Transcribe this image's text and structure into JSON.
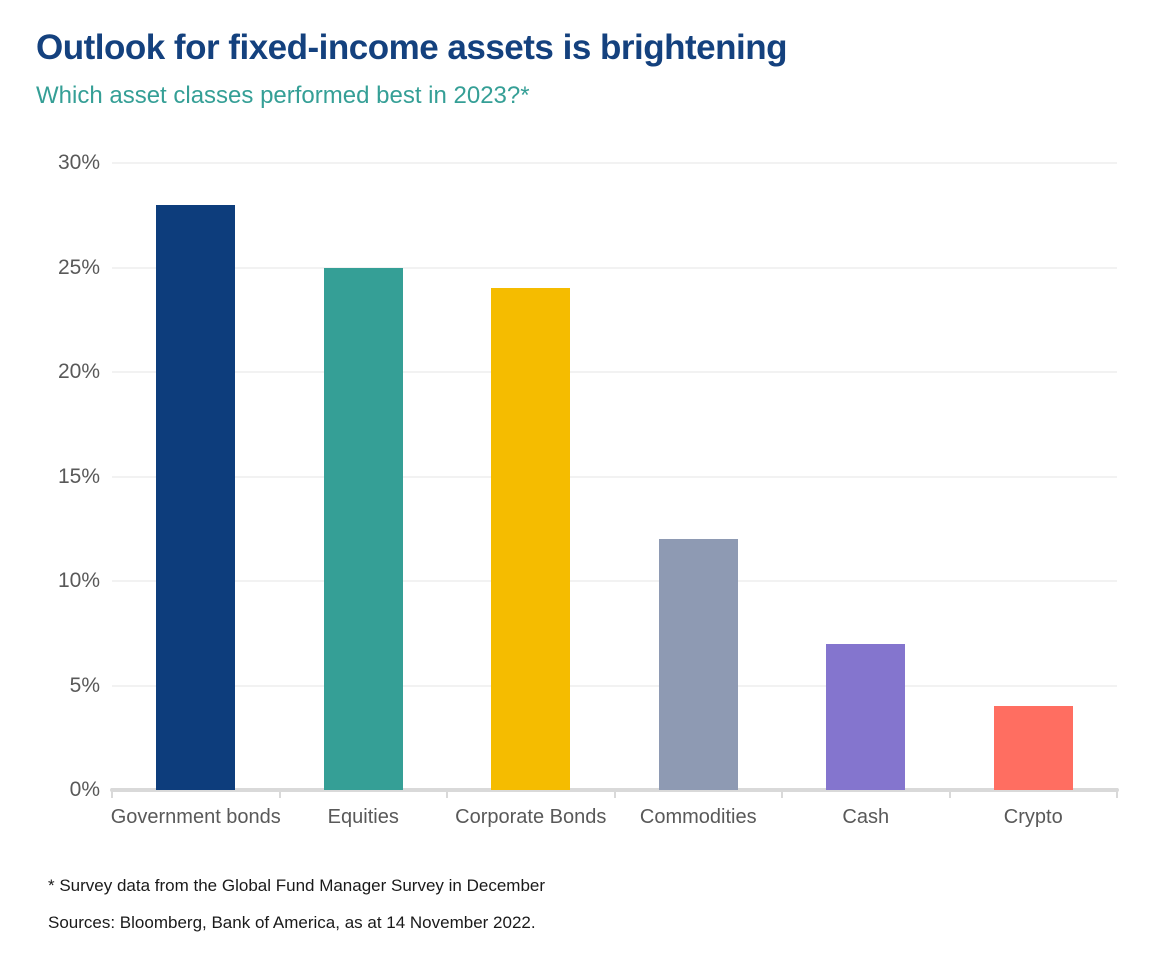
{
  "header": {
    "title": "Outlook for fixed-income assets is brightening",
    "subtitle": "Which asset classes performed best in 2023?*"
  },
  "chart_data": {
    "type": "bar",
    "title": "Outlook for fixed-income assets is brightening",
    "subtitle": "Which asset classes performed best in 2023?*",
    "categories": [
      "Government bonds",
      "Equities",
      "Corporate Bonds",
      "Commodities",
      "Cash",
      "Crypto"
    ],
    "values": [
      28,
      25,
      24,
      12,
      7,
      4
    ],
    "bar_colors": [
      "#0d3d7c",
      "#359f96",
      "#f5bc00",
      "#8e9ab3",
      "#8475ce",
      "#ff6e61"
    ],
    "xlabel": "",
    "ylabel": "",
    "ylim": [
      0,
      30
    ],
    "ytick_step": 5,
    "ytick_suffix": "%",
    "ytick_labels": [
      "0%",
      "5%",
      "10%",
      "15%",
      "20%",
      "25%",
      "30%"
    ],
    "grid": "horizontal",
    "legend": "none"
  },
  "footer": {
    "note1": "* Survey data from the Global Fund Manager Survey in December",
    "note2": "Sources: Bloomberg, Bank of America, as at 14 November 2022."
  },
  "colors": {
    "background": "#ffffff",
    "title": "#14417e",
    "subtitle": "#359f96",
    "axis_text": "#595959",
    "gridline": "#f2f2f2",
    "axis_line": "#d9d9d9",
    "footnote": "#1a1a1a"
  }
}
